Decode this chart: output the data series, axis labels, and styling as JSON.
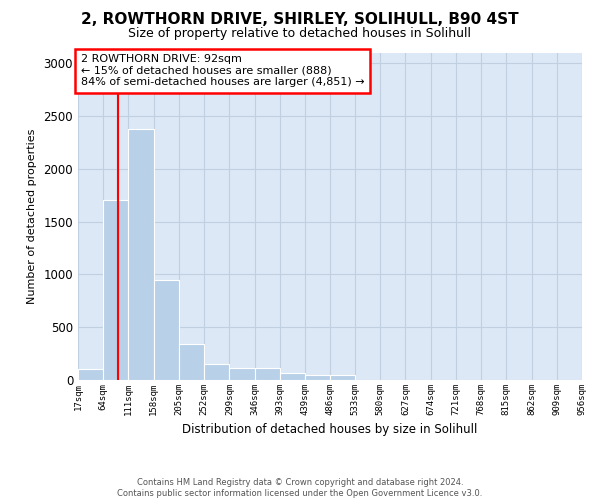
{
  "title": "2, ROWTHORN DRIVE, SHIRLEY, SOLIHULL, B90 4ST",
  "subtitle": "Size of property relative to detached houses in Solihull",
  "xlabel": "Distribution of detached houses by size in Solihull",
  "ylabel": "Number of detached properties",
  "annotation_line1": "2 ROWTHORN DRIVE: 92sqm",
  "annotation_line2": "← 15% of detached houses are smaller (888)",
  "annotation_line3": "84% of semi-detached houses are larger (4,851) →",
  "footer_line1": "Contains HM Land Registry data © Crown copyright and database right 2024.",
  "footer_line2": "Contains public sector information licensed under the Open Government Licence v3.0.",
  "bar_color": "#b8d0e8",
  "red_line_x": 92,
  "background_color": "#ffffff",
  "plot_bg_color": "#dce8f5",
  "grid_color": "#c0d0e0",
  "bin_edges": [
    17,
    64,
    111,
    158,
    205,
    252,
    299,
    346,
    393,
    439,
    486,
    533,
    580,
    627,
    674,
    721,
    768,
    815,
    862,
    909,
    956
  ],
  "bar_heights": [
    100,
    1700,
    2380,
    950,
    340,
    150,
    110,
    110,
    70,
    50,
    50,
    0,
    0,
    0,
    0,
    0,
    0,
    0,
    0,
    0
  ],
  "ylim": [
    0,
    3100
  ],
  "yticks": [
    0,
    500,
    1000,
    1500,
    2000,
    2500,
    3000
  ]
}
